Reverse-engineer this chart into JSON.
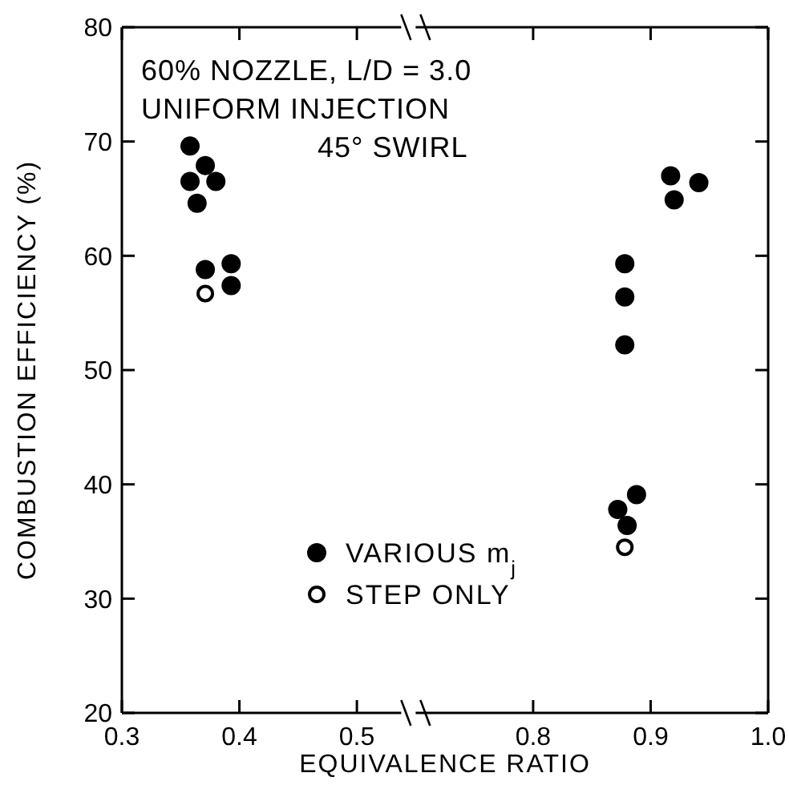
{
  "chart_data": [
    {
      "type": "scatter",
      "xlabel": "EQUIVALENCE RATIO",
      "ylabel": "COMBUSTION EFFICIENCY (%)",
      "annotations": [
        "60% NOZZLE, L/D = 3.0",
        "UNIFORM INJECTION",
        "45° SWIRL"
      ],
      "xlim": [
        0.3,
        0.55
      ],
      "xticks": [
        0.3,
        0.4,
        0.5
      ],
      "ylim": [
        20,
        80
      ],
      "yticks": [
        20,
        30,
        40,
        50,
        60,
        70,
        80
      ],
      "legend": "bottom",
      "marker": "circle",
      "series": [
        {
          "name": "VARIOUS m$_{j}$",
          "color": "#000000",
          "x": [
            0.358,
            0.371,
            0.358,
            0.38,
            0.364,
            0.371,
            0.393,
            0.393
          ],
          "values": [
            69.6,
            67.9,
            66.5,
            66.5,
            64.6,
            58.8,
            59.3,
            57.4
          ]
        },
        {
          "name": "STEP ONLY",
          "color": "#000000",
          "x": [
            0.371
          ],
          "values": [
            56.7
          ]
        }
      ]
    },
    {
      "type": "scatter",
      "xlim": [
        0.7,
        1.0
      ],
      "xticks": [
        0.8,
        0.9,
        {
          "value": 1.0,
          "label": "1.0"
        }
      ],
      "ylim": [
        20,
        80
      ],
      "yticks": [
        20,
        30,
        40,
        50,
        60,
        70,
        80
      ],
      "tick_labels": "x",
      "marker": "circle",
      "series": [
        {
          "color": "#000000",
          "x": [
            0.878,
            0.878,
            0.878,
            0.872,
            0.888,
            0.88,
            0.917,
            0.92,
            0.941
          ],
          "values": [
            59.3,
            56.4,
            52.2,
            37.8,
            39.1,
            36.4,
            67.0,
            64.9,
            66.4
          ]
        },
        {
          "color": "#000000",
          "x": [
            0.878
          ],
          "values": [
            34.5
          ]
        }
      ]
    }
  ]
}
